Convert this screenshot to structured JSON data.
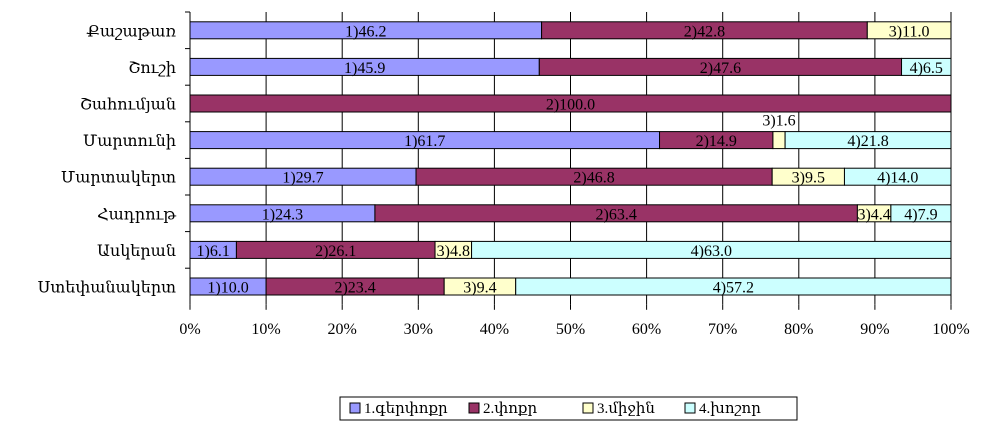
{
  "chart_data": {
    "type": "bar",
    "orientation": "horizontal",
    "stacked": "percent",
    "title": "",
    "xlabel": "",
    "ylabel": "",
    "xlim": [
      0,
      100
    ],
    "grid": true,
    "legend_position": "bottom",
    "x_ticks": [
      "0%",
      "10%",
      "20%",
      "30%",
      "40%",
      "50%",
      "60%",
      "70%",
      "80%",
      "90%",
      "100%"
    ],
    "categories": [
      "Քաշաթառ",
      "Շուշի",
      "Շահումյան",
      "Մարտունի",
      "Մարտակերտ",
      "Հադրութ",
      "Ասկերան",
      "Ստեփանակերտ"
    ],
    "series": [
      {
        "name": "1.գերփոքր",
        "color": "#9999ff",
        "values": [
          46.2,
          45.9,
          0,
          61.7,
          29.7,
          24.3,
          6.1,
          10.0
        ],
        "labels": [
          "1)46.2",
          "1)45.9",
          "",
          "1)61.7",
          "1)29.7",
          "1)24.3",
          "1)6.1",
          "1)10.0"
        ]
      },
      {
        "name": "2.փոքր",
        "color": "#993366",
        "values": [
          42.8,
          47.6,
          100.0,
          14.9,
          46.8,
          63.4,
          26.1,
          23.4
        ],
        "labels": [
          "2)42.8",
          "2)47.6",
          "2)100.0",
          "2)14.9",
          "2)46.8",
          "2)63.4",
          "2)26.1",
          "2)23.4"
        ]
      },
      {
        "name": "3.միջին",
        "color": "#ffffcc",
        "values": [
          11.0,
          0,
          0,
          1.6,
          9.5,
          4.4,
          4.8,
          9.4
        ],
        "labels": [
          "3)11.0",
          "",
          "",
          "3)1.6",
          "3)9.5",
          "3)4.4",
          "3)4.8",
          "3)9.4"
        ]
      },
      {
        "name": "4.խոշոր",
        "color": "#ccffff",
        "values": [
          0,
          6.5,
          0,
          21.8,
          14.0,
          7.9,
          63.0,
          57.2
        ],
        "labels": [
          "",
          "4)6.5",
          "",
          "4)21.8",
          "4)14.0",
          "4)7.9",
          "4)63.0",
          "4)57.2"
        ]
      }
    ]
  }
}
